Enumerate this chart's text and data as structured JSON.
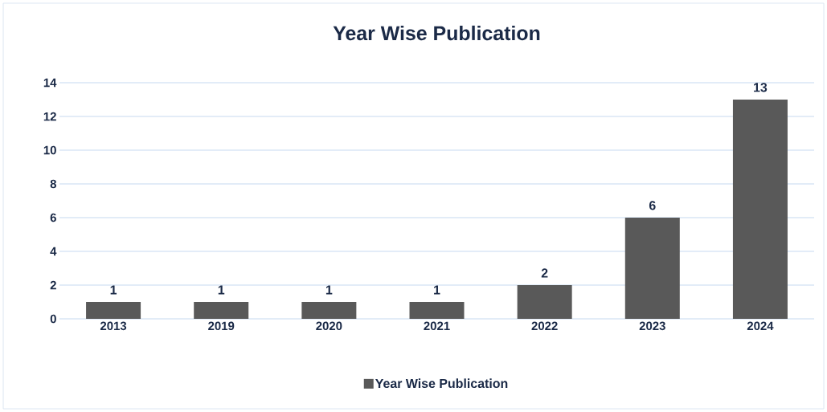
{
  "chart_data": {
    "type": "bar",
    "title": "Year Wise Publication",
    "categories": [
      "2013",
      "2019",
      "2020",
      "2021",
      "2022",
      "2023",
      "2024"
    ],
    "series": [
      {
        "name": "Year Wise Publication",
        "color": "#595959",
        "values": [
          1,
          1,
          1,
          1,
          2,
          6,
          13
        ]
      }
    ],
    "ylim": [
      0,
      14
    ],
    "yticks": [
      0,
      2,
      4,
      6,
      8,
      10,
      12,
      14
    ],
    "grid": "y",
    "legend": "bottom",
    "data_labels": true
  }
}
